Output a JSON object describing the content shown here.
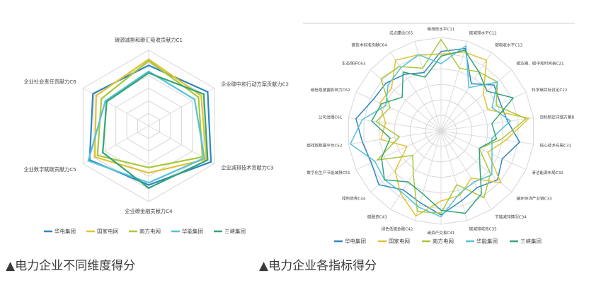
{
  "captions": [
    "▲电力企业不同维度得分",
    "▲电力企业各指标得分"
  ],
  "series_colors": [
    "#2f86c3",
    "#e2c232",
    "#a8c83a",
    "#54c2d8",
    "#35a47a"
  ],
  "chart_data": [
    {
      "type": "radar",
      "title": "",
      "axes": [
        "碳源减排和碳汇吸收贡献力C1",
        "企业碳中和行动方案贡献力C2",
        "企业减排技术贡献力C3",
        "企业碳金融贡献力C4",
        "企业数字赋碳贡献力C5",
        "企业社会责任贡献力C6"
      ],
      "rlim": [
        0,
        1
      ],
      "grid_levels": 6,
      "legend_position": "bottom",
      "series": [
        {
          "name": "华电集团",
          "values": [
            0.8,
            0.9,
            0.95,
            0.78,
            0.9,
            0.85
          ]
        },
        {
          "name": "国家电网",
          "values": [
            0.88,
            0.8,
            0.88,
            0.62,
            0.82,
            0.8
          ]
        },
        {
          "name": "南方电网",
          "values": [
            0.86,
            0.76,
            0.82,
            0.55,
            0.78,
            0.72
          ]
        },
        {
          "name": "华能集团",
          "values": [
            0.72,
            0.7,
            0.85,
            0.75,
            0.92,
            0.66
          ]
        },
        {
          "name": "三峡集团",
          "values": [
            0.7,
            0.84,
            0.9,
            0.82,
            0.7,
            0.64
          ]
        }
      ]
    },
    {
      "type": "radar",
      "title": "",
      "axes": [
        "碳排放水平C11",
        "碳减排水平C12",
        "碳吸收水平C13",
        "碳达峰、碳中和时间表C21",
        "科学碳目标设定C22",
        "目标制定详细方案B",
        "核心技术布局C31",
        "清洁能源布局C32",
        "循环经济产业链C33",
        "节能减排情况C34",
        "碳减排成效C35",
        "碳资产交易C41",
        "绿色低碳金融C42",
        "碳融资C43",
        "绿色债券C44",
        "数字化生产节能减排C51",
        "碳排放数据平台C52",
        "公司治理C61",
        "碳信息披露影响力C62",
        "生态保护C63",
        "碳技术标准贡献C64",
        "试点建设C65"
      ],
      "rlim": [
        0,
        1
      ],
      "grid_levels": 6,
      "legend_position": "bottom",
      "series": [
        {
          "name": "华电集团",
          "values": [
            0.85,
            0.92,
            0.6,
            0.75,
            0.7,
            0.72,
            0.85,
            0.72,
            0.8,
            0.72,
            0.78,
            0.9,
            0.8,
            0.75,
            0.88,
            0.82,
            0.85,
            0.92,
            0.8,
            0.78,
            0.72,
            0.65
          ]
        },
        {
          "name": "国家电网",
          "values": [
            0.82,
            0.88,
            0.9,
            0.6,
            0.55,
            0.95,
            0.7,
            0.55,
            0.85,
            0.6,
            0.72,
            0.75,
            0.95,
            0.8,
            0.65,
            0.4,
            0.65,
            0.6,
            0.72,
            0.7,
            0.9,
            0.85
          ]
        },
        {
          "name": "南方电网",
          "values": [
            0.98,
            0.7,
            0.75,
            0.8,
            0.65,
            0.92,
            0.65,
            0.45,
            0.7,
            0.85,
            0.6,
            0.88,
            0.9,
            0.55,
            0.4,
            0.75,
            0.45,
            0.7,
            0.6,
            0.85,
            0.82,
            0.7
          ]
        },
        {
          "name": "华能集团",
          "values": [
            0.72,
            0.95,
            0.55,
            0.8,
            0.6,
            0.75,
            0.55,
            0.6,
            0.72,
            0.65,
            0.7,
            0.92,
            0.85,
            0.78,
            0.8,
            0.78,
            0.98,
            0.85,
            0.65,
            0.75,
            0.8,
            0.85
          ]
        },
        {
          "name": "三峡集团",
          "values": [
            0.8,
            0.9,
            0.75,
            0.65,
            0.85,
            0.55,
            0.6,
            0.45,
            0.55,
            0.8,
            0.92,
            0.85,
            0.7,
            0.65,
            0.8,
            0.7,
            0.55,
            0.75,
            0.7,
            0.55,
            0.75,
            0.6
          ]
        }
      ]
    }
  ]
}
